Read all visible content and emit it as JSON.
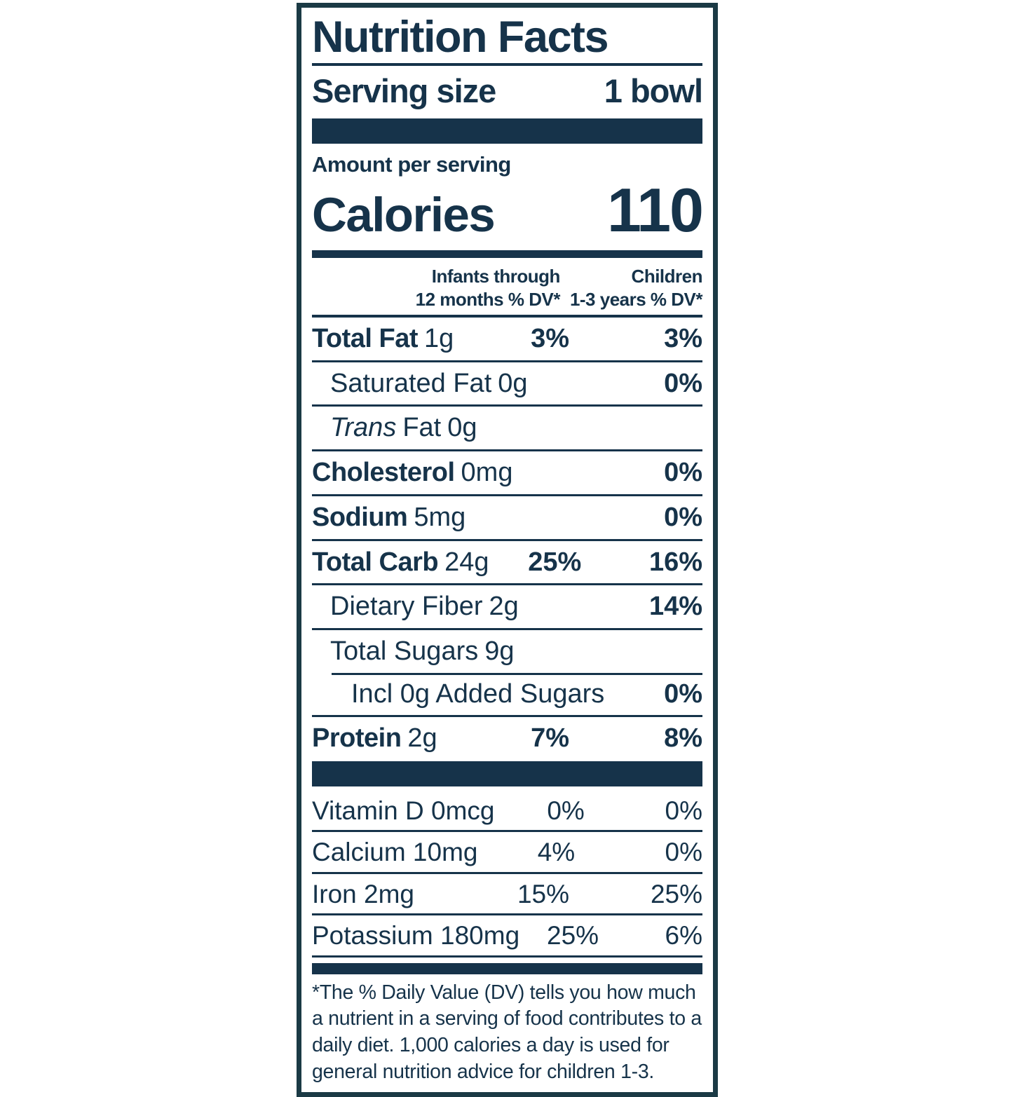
{
  "colors": {
    "ink": "#16334a",
    "border": "#1b3a45",
    "paper": "#ffffff"
  },
  "label": {
    "title": "Nutrition Facts",
    "serving_size_label": "Serving size",
    "serving_size_value": "1 bowl",
    "amount_per_serving": "Amount per serving",
    "calories_label": "Calories",
    "calories_value": "110"
  },
  "columns": {
    "infants_line1": "Infants through",
    "infants_line2": "12 months % DV*",
    "children_line1": "Children",
    "children_line2": "1-3 years % DV*"
  },
  "rows": [
    {
      "name": "Total Fat",
      "amount": "1g",
      "dv_infants": "3%",
      "dv_children": "3%"
    },
    {
      "name": "Saturated Fat",
      "amount": "0g",
      "dv_infants": "",
      "dv_children": "0%"
    },
    {
      "name_italic": "Trans",
      "name": "Fat",
      "amount": "0g",
      "dv_infants": "",
      "dv_children": ""
    },
    {
      "name": "Cholesterol",
      "amount": "0mg",
      "dv_infants": "",
      "dv_children": "0%"
    },
    {
      "name": "Sodium",
      "amount": "5mg",
      "dv_infants": "",
      "dv_children": "0%"
    },
    {
      "name": "Total Carb",
      "amount": "24g",
      "dv_infants": "25%",
      "dv_children": "16%"
    },
    {
      "name": "Dietary Fiber",
      "amount": "2g",
      "dv_infants": "",
      "dv_children": "14%"
    },
    {
      "name": "Total Sugars",
      "amount": "9g",
      "dv_infants": "",
      "dv_children": ""
    },
    {
      "name": "Incl 0g Added Sugars",
      "amount": "",
      "dv_infants": "",
      "dv_children": "0%"
    },
    {
      "name": "Protein",
      "amount": "2g",
      "dv_infants": "7%",
      "dv_children": "8%"
    }
  ],
  "vitamins": [
    {
      "text": "Vitamin D 0mcg",
      "dv_infants": "0%",
      "dv_children": "0%"
    },
    {
      "text": "Calcium 10mg",
      "dv_infants": "4%",
      "dv_children": "0%"
    },
    {
      "text": "Iron 2mg",
      "dv_infants": "15%",
      "dv_children": "25%"
    },
    {
      "text": "Potassium 180mg",
      "dv_infants": "25%",
      "dv_children": "6%"
    }
  ],
  "footnote": "*The % Daily Value (DV) tells you how much a nutrient in a serving of food contributes to a daily diet. 1,000 calories a day is used for general nutrition advice for children 1-3."
}
